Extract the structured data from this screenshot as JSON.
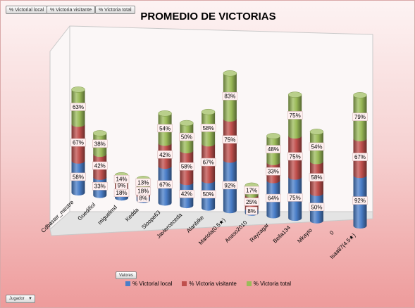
{
  "filter_chips": [
    "% Victorial local",
    "% Victoria visitante",
    "% Victoria total"
  ],
  "valores_label": "Valores",
  "jugador_label": "Jugador",
  "colors": {
    "local": "#4a7ec8",
    "visitante": "#c0504d",
    "total": "#9bbb59"
  },
  "chart_data": {
    "type": "bar",
    "title": "PROMEDIO DE VICTORIAS",
    "stacked": true,
    "shape": "3d-cylinder",
    "categories": [
      "Cdbaster_mestre",
      "Guedifiol",
      "miguelmd",
      "Kedda",
      "Sloope63",
      "Javierceceda",
      "Alanbike",
      "Mariola(0.5★)",
      "Anaso2010",
      "Rayzagar",
      "Bella134",
      "Mkayto",
      "0",
      "Isaa87(4.5★)"
    ],
    "series": [
      {
        "name": "% Victorial local",
        "values": [
          58,
          33,
          18,
          8,
          67,
          42,
          50,
          92,
          8,
          64,
          75,
          50,
          null,
          92
        ],
        "labels": [
          "58%",
          "33%",
          "18%",
          "8%",
          "67%",
          "42%",
          "50%",
          "92%",
          "8%",
          "64%",
          "75%",
          "50%",
          "",
          "92%"
        ]
      },
      {
        "name": "% Victoria visitante",
        "values": [
          67,
          42,
          9,
          18,
          42,
          58,
          67,
          75,
          25,
          33,
          75,
          58,
          null,
          67
        ],
        "labels": [
          "67%",
          "42%",
          "9%",
          "18%",
          "42%",
          "58%",
          "67%",
          "75%",
          "25%",
          "33%",
          "75%",
          "58%",
          "",
          "67%"
        ]
      },
      {
        "name": "% Victoria total",
        "values": [
          63,
          38,
          14,
          13,
          54,
          50,
          58,
          83,
          17,
          48,
          75,
          54,
          null,
          79
        ],
        "labels": [
          "63%",
          "38%",
          "14%",
          "13%",
          "54%",
          "50%",
          "58%",
          "83%",
          "17%",
          "48%",
          "75%",
          "54%",
          "",
          "79%"
        ]
      }
    ],
    "legend": "bottom",
    "grid": false
  }
}
